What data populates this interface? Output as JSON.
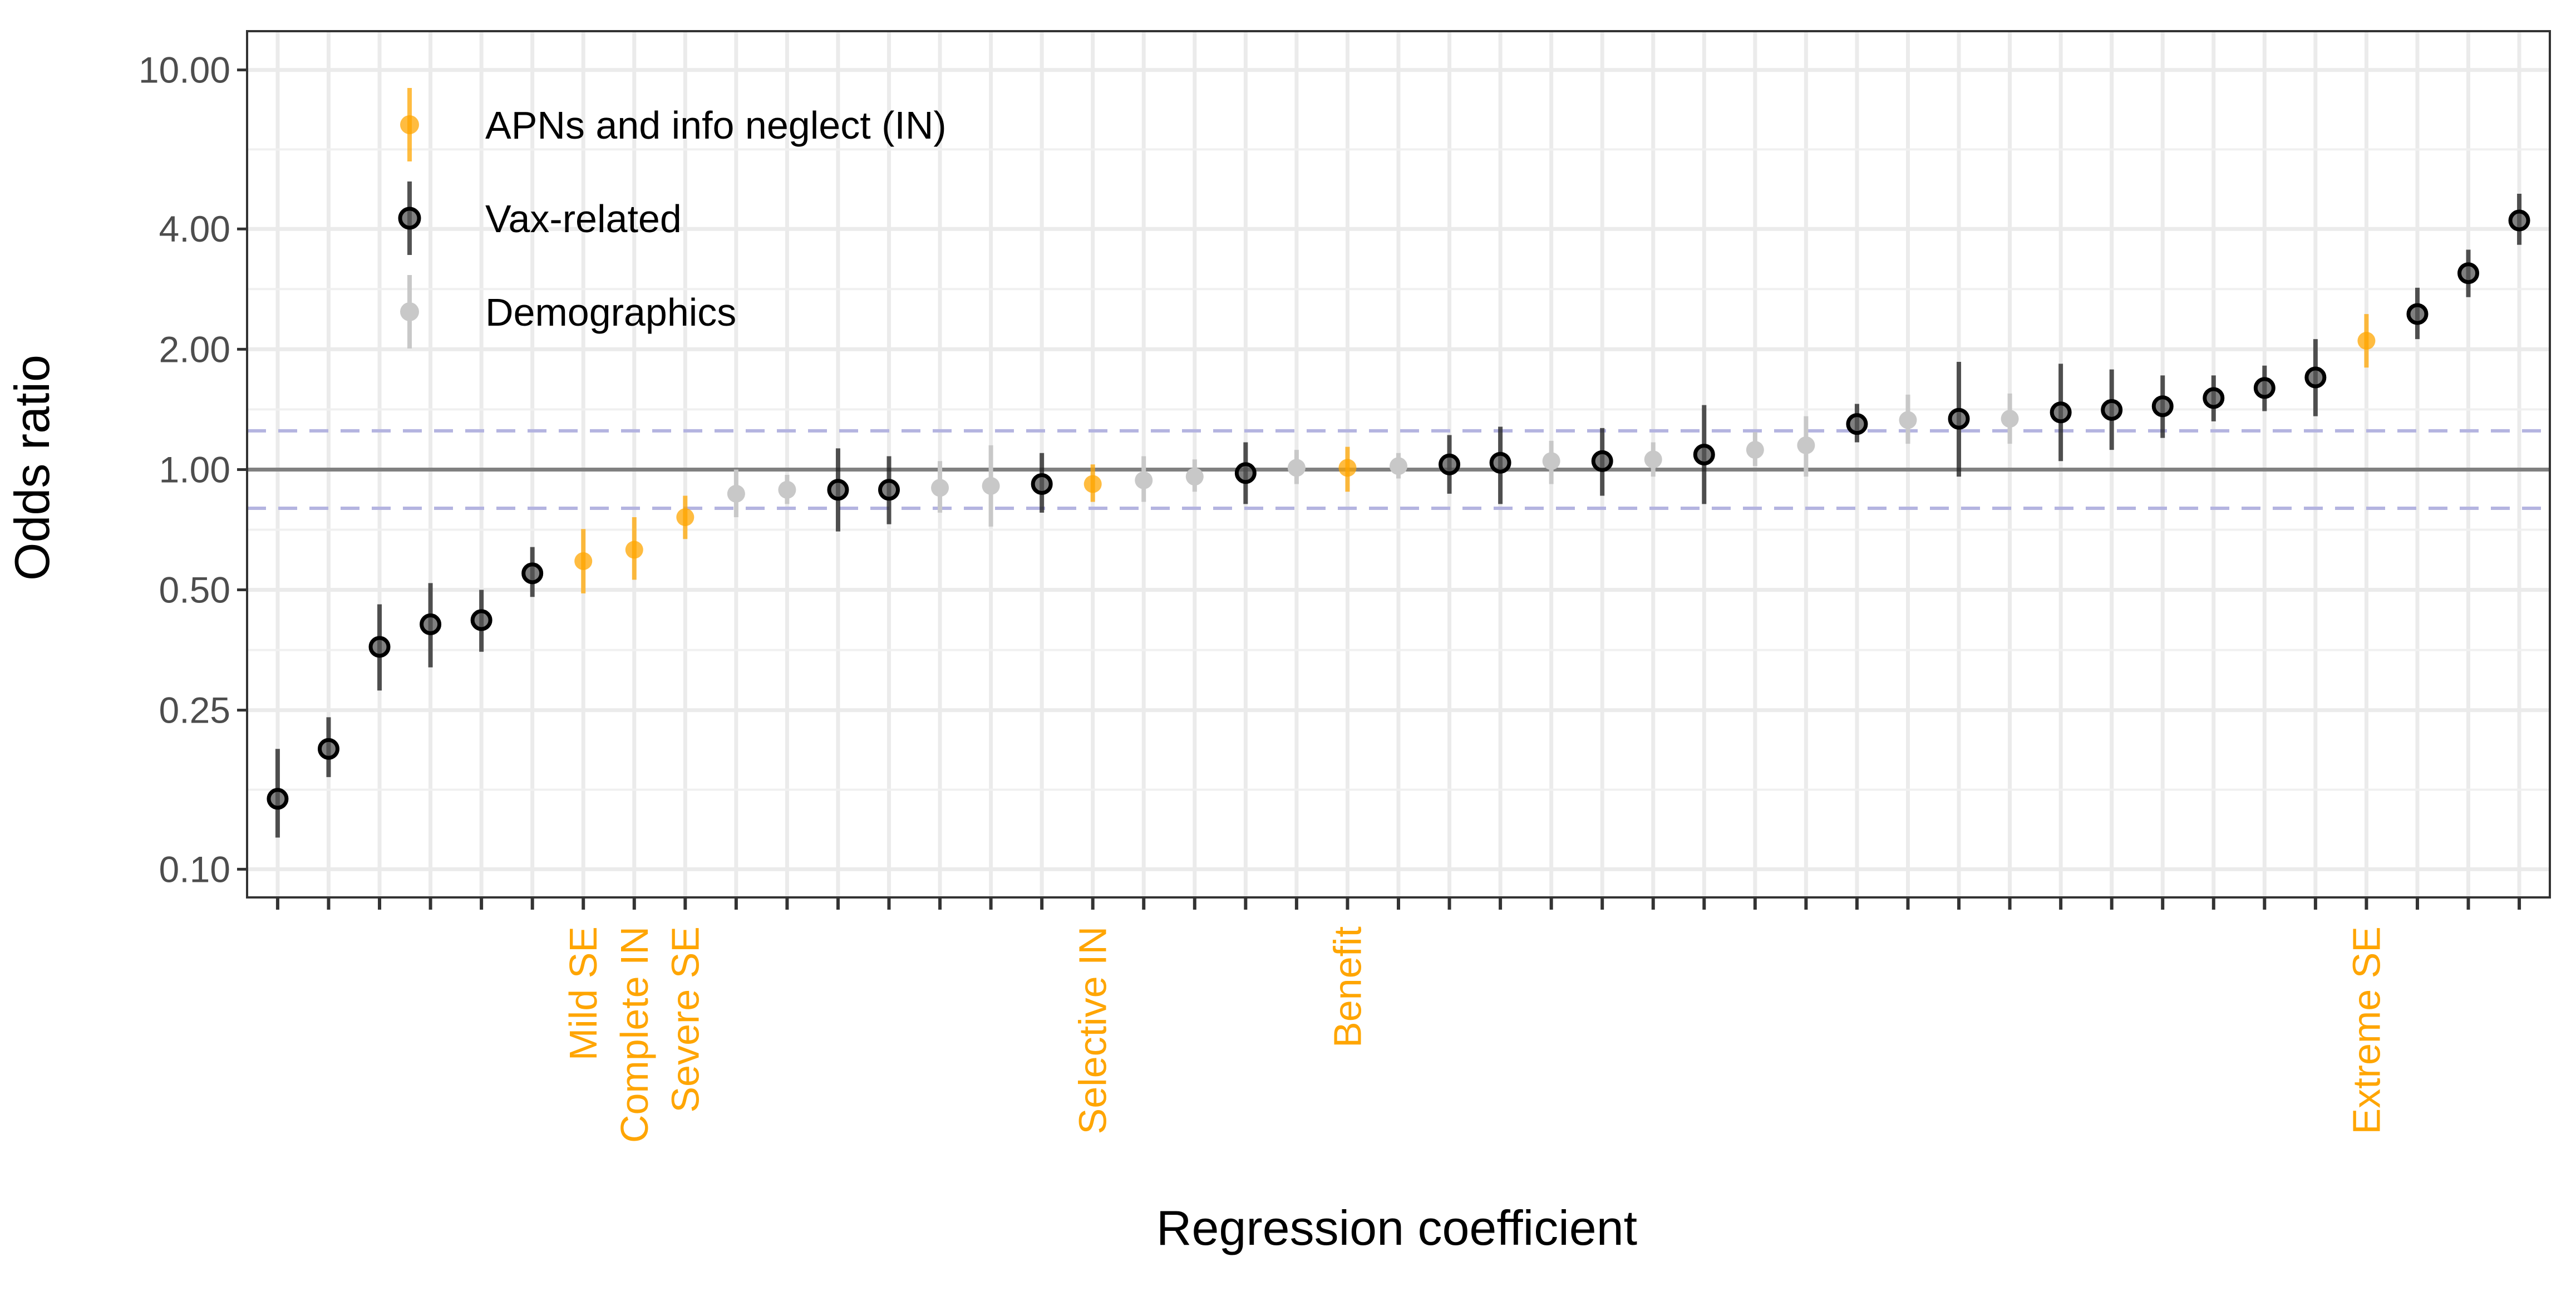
{
  "chart_data": {
    "type": "scatter",
    "subtype": "point-range (odds ratio with 95% interval)",
    "xlabel": "Regression coefficient",
    "ylabel": "Odds ratio",
    "y_scale": "log",
    "ylim": [
      0.085,
      12.5
    ],
    "y_ticks": [
      0.1,
      0.25,
      0.5,
      1,
      2,
      4,
      10
    ],
    "y_tick_labels": [
      "0.10",
      "0.25",
      "0.50",
      "1.00",
      "2.00",
      "4.00",
      "10.00"
    ],
    "x_count": 45,
    "grid": true,
    "reference_line": {
      "value": 1.0,
      "color": "#808080"
    },
    "band_lines": {
      "values": [
        0.8,
        1.25
      ],
      "style": "dashed",
      "color": "#b4b4e0"
    },
    "legend": {
      "position": "top-left",
      "entries": [
        {
          "group": "IN",
          "label": "APNs and info neglect (IN)",
          "color": "#FFA500"
        },
        {
          "group": "vax",
          "label": "Vax-related",
          "color": "#1a1a1a"
        },
        {
          "group": "demo",
          "label": "Demographics",
          "color": "#c8c8c8"
        }
      ]
    },
    "points": [
      {
        "x": 1,
        "or": 0.15,
        "lo": 0.12,
        "hi": 0.2,
        "group": "vax",
        "label": ""
      },
      {
        "x": 2,
        "or": 0.2,
        "lo": 0.17,
        "hi": 0.24,
        "group": "vax",
        "label": ""
      },
      {
        "x": 3,
        "or": 0.36,
        "lo": 0.28,
        "hi": 0.46,
        "group": "vax",
        "label": ""
      },
      {
        "x": 4,
        "or": 0.41,
        "lo": 0.32,
        "hi": 0.52,
        "group": "vax",
        "label": ""
      },
      {
        "x": 5,
        "or": 0.42,
        "lo": 0.35,
        "hi": 0.5,
        "group": "vax",
        "label": ""
      },
      {
        "x": 6,
        "or": 0.55,
        "lo": 0.48,
        "hi": 0.64,
        "group": "vax",
        "label": ""
      },
      {
        "x": 7,
        "or": 0.59,
        "lo": 0.49,
        "hi": 0.71,
        "group": "IN",
        "label": "Mild SE"
      },
      {
        "x": 8,
        "or": 0.63,
        "lo": 0.53,
        "hi": 0.76,
        "group": "IN",
        "label": "Complete IN"
      },
      {
        "x": 9,
        "or": 0.76,
        "lo": 0.67,
        "hi": 0.86,
        "group": "IN",
        "label": "Severe SE"
      },
      {
        "x": 10,
        "or": 0.87,
        "lo": 0.76,
        "hi": 1.0,
        "group": "demo",
        "label": ""
      },
      {
        "x": 11,
        "or": 0.89,
        "lo": 0.82,
        "hi": 0.97,
        "group": "demo",
        "label": ""
      },
      {
        "x": 12,
        "or": 0.89,
        "lo": 0.7,
        "hi": 1.13,
        "group": "vax",
        "label": ""
      },
      {
        "x": 13,
        "or": 0.89,
        "lo": 0.73,
        "hi": 1.08,
        "group": "vax",
        "label": ""
      },
      {
        "x": 14,
        "or": 0.9,
        "lo": 0.78,
        "hi": 1.05,
        "group": "demo",
        "label": ""
      },
      {
        "x": 15,
        "or": 0.91,
        "lo": 0.72,
        "hi": 1.15,
        "group": "demo",
        "label": ""
      },
      {
        "x": 16,
        "or": 0.92,
        "lo": 0.78,
        "hi": 1.1,
        "group": "vax",
        "label": ""
      },
      {
        "x": 17,
        "or": 0.92,
        "lo": 0.83,
        "hi": 1.03,
        "group": "IN",
        "label": "Selective IN"
      },
      {
        "x": 18,
        "or": 0.94,
        "lo": 0.83,
        "hi": 1.08,
        "group": "demo",
        "label": ""
      },
      {
        "x": 19,
        "or": 0.96,
        "lo": 0.88,
        "hi": 1.06,
        "group": "demo",
        "label": ""
      },
      {
        "x": 20,
        "or": 0.98,
        "lo": 0.82,
        "hi": 1.17,
        "group": "vax",
        "label": ""
      },
      {
        "x": 21,
        "or": 1.01,
        "lo": 0.92,
        "hi": 1.12,
        "group": "demo",
        "label": ""
      },
      {
        "x": 22,
        "or": 1.01,
        "lo": 0.88,
        "hi": 1.14,
        "group": "IN",
        "label": "Benefit"
      },
      {
        "x": 23,
        "or": 1.02,
        "lo": 0.95,
        "hi": 1.1,
        "group": "demo",
        "label": ""
      },
      {
        "x": 24,
        "or": 1.03,
        "lo": 0.87,
        "hi": 1.22,
        "group": "vax",
        "label": ""
      },
      {
        "x": 25,
        "or": 1.04,
        "lo": 0.82,
        "hi": 1.28,
        "group": "vax",
        "label": ""
      },
      {
        "x": 26,
        "or": 1.05,
        "lo": 0.92,
        "hi": 1.18,
        "group": "demo",
        "label": ""
      },
      {
        "x": 27,
        "or": 1.05,
        "lo": 0.86,
        "hi": 1.27,
        "group": "vax",
        "label": ""
      },
      {
        "x": 28,
        "or": 1.06,
        "lo": 0.96,
        "hi": 1.17,
        "group": "demo",
        "label": ""
      },
      {
        "x": 29,
        "or": 1.09,
        "lo": 0.82,
        "hi": 1.45,
        "group": "vax",
        "label": ""
      },
      {
        "x": 30,
        "or": 1.12,
        "lo": 1.02,
        "hi": 1.24,
        "group": "demo",
        "label": ""
      },
      {
        "x": 31,
        "or": 1.15,
        "lo": 0.96,
        "hi": 1.36,
        "group": "demo",
        "label": ""
      },
      {
        "x": 32,
        "or": 1.3,
        "lo": 1.17,
        "hi": 1.46,
        "group": "vax",
        "label": ""
      },
      {
        "x": 33,
        "or": 1.33,
        "lo": 1.16,
        "hi": 1.54,
        "group": "demo",
        "label": ""
      },
      {
        "x": 34,
        "or": 1.34,
        "lo": 0.96,
        "hi": 1.86,
        "group": "vax",
        "label": ""
      },
      {
        "x": 35,
        "or": 1.34,
        "lo": 1.16,
        "hi": 1.55,
        "group": "demo",
        "label": ""
      },
      {
        "x": 36,
        "or": 1.39,
        "lo": 1.05,
        "hi": 1.84,
        "group": "vax",
        "label": ""
      },
      {
        "x": 37,
        "or": 1.41,
        "lo": 1.12,
        "hi": 1.78,
        "group": "vax",
        "label": ""
      },
      {
        "x": 38,
        "or": 1.44,
        "lo": 1.2,
        "hi": 1.72,
        "group": "vax",
        "label": ""
      },
      {
        "x": 39,
        "or": 1.51,
        "lo": 1.32,
        "hi": 1.72,
        "group": "vax",
        "label": ""
      },
      {
        "x": 40,
        "or": 1.6,
        "lo": 1.4,
        "hi": 1.82,
        "group": "vax",
        "label": ""
      },
      {
        "x": 41,
        "or": 1.7,
        "lo": 1.36,
        "hi": 2.12,
        "group": "vax",
        "label": ""
      },
      {
        "x": 42,
        "or": 2.1,
        "lo": 1.8,
        "hi": 2.45,
        "group": "IN",
        "label": "Extreme SE"
      },
      {
        "x": 43,
        "or": 2.45,
        "lo": 2.12,
        "hi": 2.85,
        "group": "vax",
        "label": ""
      },
      {
        "x": 44,
        "or": 3.1,
        "lo": 2.7,
        "hi": 3.55,
        "group": "vax",
        "label": ""
      },
      {
        "x": 45,
        "or": 4.2,
        "lo": 3.65,
        "hi": 4.9,
        "group": "vax",
        "label": ""
      }
    ]
  }
}
